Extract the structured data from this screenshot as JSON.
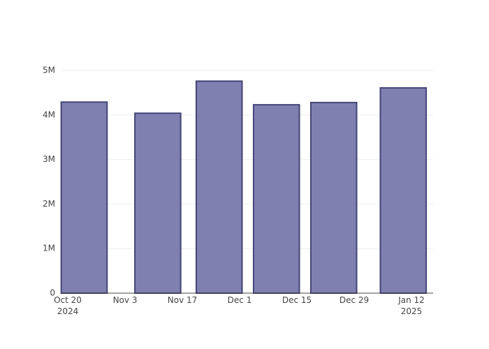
{
  "chart_data": {
    "type": "bar",
    "x": [
      "2024-10-24",
      "2024-11-11",
      "2024-11-26",
      "2024-12-10",
      "2024-12-24",
      "2025-01-10"
    ],
    "values": [
      4290000,
      4040000,
      4760000,
      4230000,
      4280000,
      4610000
    ],
    "color": "#7f7fb0",
    "edge_color": "#444477",
    "xlim": [
      "2024-10-18T11:00",
      "2025-01-17T07:00"
    ],
    "xticks": [
      {
        "value": "2024-10-20",
        "label": [
          "Oct 20",
          "2024"
        ]
      },
      {
        "value": "2024-11-03",
        "label": [
          "Nov 3"
        ]
      },
      {
        "value": "2024-11-17",
        "label": [
          "Nov 17"
        ]
      },
      {
        "value": "2024-12-01",
        "label": [
          "Dec 1"
        ]
      },
      {
        "value": "2024-12-15",
        "label": [
          "Dec 15"
        ]
      },
      {
        "value": "2024-12-29",
        "label": [
          "Dec 29"
        ]
      },
      {
        "value": "2025-01-12",
        "label": [
          "Jan 12",
          "2025"
        ]
      }
    ],
    "ylim": [
      0,
      5015000
    ],
    "yticks": [
      0,
      {
        "value": 1000000,
        "label": "1M"
      },
      {
        "value": 2000000,
        "label": "2M"
      },
      {
        "value": 3000000,
        "label": "3M"
      },
      {
        "value": 4000000,
        "label": "4M"
      },
      {
        "value": 5000000,
        "label": "5M"
      }
    ],
    "grid": true
  }
}
